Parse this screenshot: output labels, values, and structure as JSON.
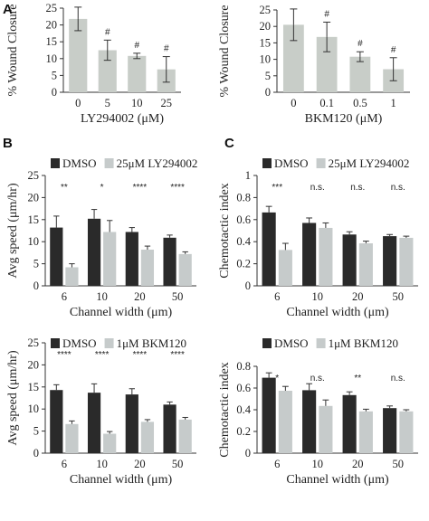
{
  "panel_labels": [
    "A",
    "B",
    "C"
  ],
  "chart_data": [
    {
      "type": "bar",
      "panel": "A",
      "categories": [
        "0",
        "5",
        "10",
        "25"
      ],
      "series": [
        {
          "values": [
            21.8,
            12.5,
            10.8,
            6.8
          ],
          "errors": [
            3.5,
            3.0,
            0.8,
            3.8
          ]
        }
      ],
      "annotations": [
        "",
        "#",
        "#",
        "#"
      ],
      "xlabel": "LY294002 (μM)",
      "ylabel": "% Wound Closure",
      "ylim": [
        0,
        25
      ],
      "yticks": [
        0,
        5,
        10,
        15,
        20,
        25
      ],
      "colors": [
        "#c8cdc8"
      ]
    },
    {
      "type": "bar",
      "panel": "A",
      "categories": [
        "0",
        "0.1",
        "0.5",
        "1"
      ],
      "series": [
        {
          "values": [
            20.5,
            16.8,
            10.8,
            7.0
          ],
          "errors": [
            4.8,
            4.5,
            1.5,
            3.5
          ]
        }
      ],
      "annotations": [
        "",
        "#",
        "#",
        "#"
      ],
      "xlabel": "BKM120 (μM)",
      "ylabel": "% Wound Closure",
      "ylim": [
        0,
        25
      ],
      "yticks": [
        0,
        5,
        10,
        15,
        20,
        25
      ],
      "colors": [
        "#c8cdc8"
      ]
    },
    {
      "type": "bar",
      "panel": "B",
      "categories": [
        "6",
        "10",
        "20",
        "50"
      ],
      "series": [
        {
          "name": "DMSO",
          "values": [
            13.2,
            15.2,
            12.2,
            10.9
          ],
          "errors": [
            2.6,
            2.1,
            1.0,
            0.6
          ]
        },
        {
          "name": "25μM LY294002",
          "values": [
            4.2,
            12.2,
            8.2,
            7.2
          ],
          "errors": [
            0.8,
            2.6,
            0.8,
            0.5
          ]
        }
      ],
      "annotations": [
        "**",
        "*",
        "****",
        "****"
      ],
      "xlabel": "Channel width (μm)",
      "ylabel": "Avg speed (μm/hr)",
      "ylim": [
        0,
        25
      ],
      "yticks": [
        0,
        5,
        10,
        15,
        20,
        25
      ],
      "colors": [
        "#2a2a2a",
        "#c6cbcb"
      ]
    },
    {
      "type": "bar",
      "panel": "C",
      "categories": [
        "6",
        "10",
        "20",
        "50"
      ],
      "series": [
        {
          "name": "DMSO",
          "values": [
            0.665,
            0.57,
            0.465,
            0.45
          ],
          "errors": [
            0.055,
            0.045,
            0.025,
            0.015
          ]
        },
        {
          "name": "25μM LY294002",
          "values": [
            0.325,
            0.525,
            0.385,
            0.435
          ],
          "errors": [
            0.06,
            0.045,
            0.02,
            0.015
          ]
        }
      ],
      "annotations": [
        "***",
        "n.s.",
        "n.s.",
        "n.s."
      ],
      "xlabel": "Channel width (μm)",
      "ylabel": "Chemotactic index",
      "ylim": [
        0,
        1
      ],
      "yticks": [
        0,
        0.2,
        0.4,
        0.6,
        0.8,
        1
      ],
      "colors": [
        "#2a2a2a",
        "#c6cbcb"
      ]
    },
    {
      "type": "bar",
      "panel": "B",
      "categories": [
        "6",
        "10",
        "20",
        "50"
      ],
      "series": [
        {
          "name": "DMSO",
          "values": [
            14.3,
            13.7,
            13.3,
            11.0
          ],
          "errors": [
            1.2,
            2.0,
            1.3,
            0.6
          ]
        },
        {
          "name": "1μM BKM120",
          "values": [
            6.6,
            4.4,
            7.1,
            7.6
          ],
          "errors": [
            0.7,
            0.5,
            0.5,
            0.5
          ]
        }
      ],
      "annotations": [
        "****",
        "****",
        "****",
        "****"
      ],
      "xlabel": "Channel width (μm)",
      "ylabel": "Avg speed (μm/hr)",
      "ylim": [
        0,
        25
      ],
      "yticks": [
        0,
        5,
        10,
        15,
        20,
        25
      ],
      "colors": [
        "#2a2a2a",
        "#c6cbcb"
      ]
    },
    {
      "type": "bar",
      "panel": "C",
      "categories": [
        "6",
        "10",
        "20",
        "50"
      ],
      "series": [
        {
          "name": "DMSO",
          "values": [
            0.695,
            0.58,
            0.535,
            0.415
          ],
          "errors": [
            0.045,
            0.06,
            0.03,
            0.02
          ]
        },
        {
          "name": "1μM BKM120",
          "values": [
            0.575,
            0.435,
            0.385,
            0.385
          ],
          "errors": [
            0.04,
            0.055,
            0.02,
            0.015
          ]
        }
      ],
      "annotations": [
        "*",
        "n.s.",
        "**",
        "n.s."
      ],
      "xlabel": "Channel width (μm)",
      "ylabel": "Chemotactic index",
      "ylim": [
        0,
        0.8
      ],
      "yticks": [
        0,
        0.2,
        0.4,
        0.6,
        0.8
      ],
      "colors": [
        "#2a2a2a",
        "#c6cbcb"
      ]
    }
  ]
}
